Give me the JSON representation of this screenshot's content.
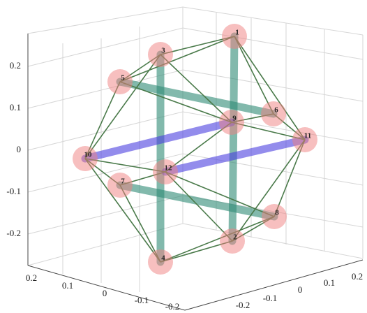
{
  "plot": {
    "z_ticks": [
      0.2,
      0.1,
      0,
      -0.1,
      -0.2
    ],
    "x_ticks": [
      0.2,
      0.1,
      0,
      -0.1,
      -0.2
    ],
    "y_ticks": [
      -0.2,
      -0.1,
      0,
      0.1,
      0.2
    ],
    "nodes": [
      "1",
      "2",
      "3",
      "4",
      "5",
      "6",
      "7",
      "8",
      "9",
      "10",
      "11",
      "12"
    ]
  }
}
